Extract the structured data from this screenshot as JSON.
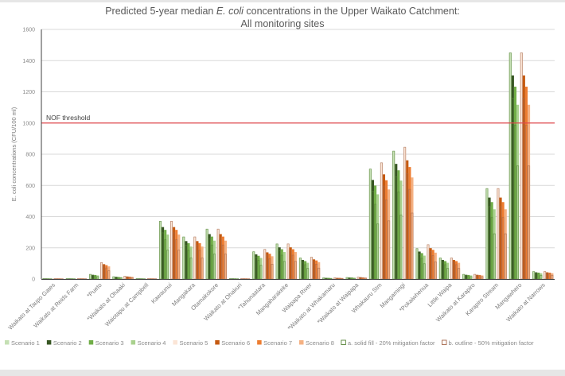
{
  "chart_data": {
    "type": "bar",
    "title_line1_pre": "Predicted 5-year median ",
    "title_italic": "E. coli",
    "title_line1_post": " concentrations in the Upper Waikato Catchment:",
    "title_line2": "All monitoring sites",
    "ylabel": "E. coli concentrations (CFU/100 ml)",
    "ylim": [
      0,
      1600
    ],
    "yticks": [
      0,
      200,
      400,
      600,
      800,
      1000,
      1200,
      1400,
      1600
    ],
    "grid": true,
    "threshold": {
      "label": "NOF threshold",
      "value": 1000,
      "color": "#e0474c"
    },
    "legend_position": "bottom",
    "series": [
      {
        "name": "Scenario 1",
        "color": "#c5e0b4"
      },
      {
        "name": "Scenario 2",
        "color": "#375623"
      },
      {
        "name": "Scenario 3",
        "color": "#70ad47"
      },
      {
        "name": "Scenario 4",
        "color": "#a9d18e"
      },
      {
        "name": "Scenario 5",
        "color": "#fbe5d6"
      },
      {
        "name": "Scenario 6",
        "color": "#c55a11"
      },
      {
        "name": "Scenario 7",
        "color": "#ed7d31"
      },
      {
        "name": "Scenario 8",
        "color": "#f4b183"
      }
    ],
    "fill_styles": [
      {
        "name": "a. solid fill - 20% mitigation factor",
        "color": "#548235"
      },
      {
        "name": "b. outline - 50% mitigation factor",
        "color": "#a5674a"
      }
    ],
    "sites": [
      {
        "name": "Waikato at Taupo Gates",
        "a": [
          3,
          3,
          3,
          2,
          3,
          3,
          3,
          2
        ],
        "b": [
          3,
          2,
          2,
          2,
          3,
          2,
          2,
          2
        ]
      },
      {
        "name": "Waikato at Reids Farm",
        "a": [
          3,
          3,
          3,
          2,
          3,
          3,
          3,
          2
        ],
        "b": [
          3,
          2,
          2,
          2,
          3,
          2,
          2,
          2
        ]
      },
      {
        "name": "*Pueto",
        "a": [
          30,
          27,
          26,
          23,
          105,
          95,
          89,
          81
        ],
        "b": [
          30,
          24,
          20,
          15,
          105,
          84,
          71,
          53
        ]
      },
      {
        "name": "*Waikato at Ohaaki",
        "a": [
          15,
          14,
          13,
          12,
          18,
          16,
          15,
          14
        ],
        "b": [
          15,
          12,
          10,
          8,
          18,
          14,
          12,
          9
        ]
      },
      {
        "name": "Waiotapu at Campbell",
        "a": [
          3,
          3,
          3,
          2,
          3,
          3,
          3,
          2
        ],
        "b": [
          3,
          2,
          2,
          2,
          3,
          2,
          2,
          2
        ]
      },
      {
        "name": "Kawaunui",
        "a": [
          370,
          333,
          315,
          285,
          370,
          333,
          315,
          285
        ],
        "b": [
          370,
          296,
          252,
          185,
          370,
          296,
          252,
          185
        ]
      },
      {
        "name": "Mangakara",
        "a": [
          270,
          243,
          230,
          208,
          270,
          243,
          230,
          208
        ],
        "b": [
          270,
          216,
          184,
          135,
          270,
          216,
          184,
          135
        ]
      },
      {
        "name": "Otamakokore",
        "a": [
          320,
          288,
          272,
          246,
          320,
          288,
          272,
          246
        ],
        "b": [
          320,
          256,
          218,
          160,
          320,
          256,
          218,
          160
        ]
      },
      {
        "name": "Waikato at Ohakuri",
        "a": [
          3,
          3,
          3,
          2,
          3,
          3,
          3,
          2
        ],
        "b": [
          3,
          2,
          2,
          2,
          3,
          2,
          2,
          2
        ]
      },
      {
        "name": "*Tahunaatara",
        "a": [
          175,
          158,
          149,
          135,
          190,
          171,
          162,
          146
        ],
        "b": [
          175,
          140,
          119,
          88,
          190,
          152,
          129,
          95
        ]
      },
      {
        "name": "Mangaharakeke",
        "a": [
          225,
          203,
          191,
          173,
          225,
          203,
          191,
          173
        ],
        "b": [
          225,
          180,
          153,
          113,
          225,
          180,
          153,
          113
        ]
      },
      {
        "name": "Waipapa River",
        "a": [
          135,
          122,
          115,
          104,
          140,
          126,
          119,
          108
        ],
        "b": [
          135,
          108,
          92,
          68,
          140,
          112,
          95,
          70
        ]
      },
      {
        "name": "*Waikato at Whakamaru",
        "a": [
          8,
          7,
          7,
          6,
          8,
          7,
          7,
          6
        ],
        "b": [
          8,
          6,
          5,
          4,
          8,
          6,
          5,
          4
        ]
      },
      {
        "name": "*Waikato at Waipapa",
        "a": [
          10,
          9,
          9,
          8,
          12,
          11,
          10,
          9
        ],
        "b": [
          10,
          8,
          7,
          5,
          12,
          10,
          8,
          6
        ]
      },
      {
        "name": "Whakauru Stm",
        "a": [
          705,
          635,
          599,
          543,
          745,
          671,
          633,
          574
        ],
        "b": [
          705,
          564,
          479,
          353,
          745,
          596,
          507,
          373
        ]
      },
      {
        "name": "Mangamingi",
        "a": [
          820,
          738,
          697,
          631,
          845,
          761,
          718,
          651
        ],
        "b": [
          820,
          656,
          558,
          410,
          845,
          676,
          575,
          423
        ]
      },
      {
        "name": "*Pokaiwhenua",
        "a": [
          195,
          176,
          166,
          150,
          220,
          198,
          187,
          169
        ],
        "b": [
          195,
          156,
          133,
          98,
          220,
          176,
          150,
          110
        ]
      },
      {
        "name": "Little Waipa",
        "a": [
          135,
          122,
          115,
          104,
          135,
          122,
          115,
          104
        ],
        "b": [
          135,
          108,
          92,
          68,
          135,
          108,
          92,
          68
        ]
      },
      {
        "name": "Waikato at Karapiro",
        "a": [
          30,
          27,
          26,
          23,
          30,
          27,
          26,
          23
        ],
        "b": [
          30,
          24,
          20,
          15,
          30,
          24,
          20,
          15
        ]
      },
      {
        "name": "Karapiro Stream",
        "a": [
          580,
          522,
          493,
          447,
          580,
          522,
          493,
          447
        ],
        "b": [
          580,
          464,
          394,
          290,
          580,
          464,
          394,
          290
        ]
      },
      {
        "name": "Mangawhero",
        "a": [
          1450,
          1305,
          1233,
          1117,
          1450,
          1305,
          1233,
          1117
        ],
        "b": [
          1450,
          1160,
          986,
          725,
          1450,
          1160,
          986,
          725
        ]
      },
      {
        "name": "Waikato at Narrows",
        "a": [
          48,
          43,
          41,
          37,
          48,
          43,
          41,
          37
        ],
        "b": [
          48,
          38,
          33,
          24,
          48,
          38,
          33,
          24
        ]
      }
    ]
  }
}
